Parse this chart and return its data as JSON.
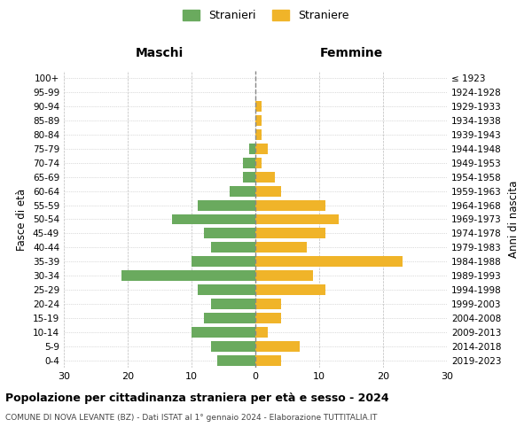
{
  "age_groups_bottom_to_top": [
    "0-4",
    "5-9",
    "10-14",
    "15-19",
    "20-24",
    "25-29",
    "30-34",
    "35-39",
    "40-44",
    "45-49",
    "50-54",
    "55-59",
    "60-64",
    "65-69",
    "70-74",
    "75-79",
    "80-84",
    "85-89",
    "90-94",
    "95-99",
    "100+"
  ],
  "birth_years_bottom_to_top": [
    "2019-2023",
    "2014-2018",
    "2009-2013",
    "2004-2008",
    "1999-2003",
    "1994-1998",
    "1989-1993",
    "1984-1988",
    "1979-1983",
    "1974-1978",
    "1969-1973",
    "1964-1968",
    "1959-1963",
    "1954-1958",
    "1949-1953",
    "1944-1948",
    "1939-1943",
    "1934-1938",
    "1929-1933",
    "1924-1928",
    "≤ 1923"
  ],
  "males_bottom_to_top": [
    6,
    7,
    10,
    8,
    7,
    9,
    21,
    10,
    7,
    8,
    13,
    9,
    4,
    2,
    2,
    1,
    0,
    0,
    0,
    0,
    0
  ],
  "females_bottom_to_top": [
    4,
    7,
    2,
    4,
    4,
    11,
    9,
    23,
    8,
    11,
    13,
    11,
    4,
    3,
    1,
    2,
    1,
    1,
    1,
    0,
    0
  ],
  "male_color": "#6aaa5e",
  "female_color": "#f0b429",
  "title": "Popolazione per cittadinanza straniera per età e sesso - 2024",
  "subtitle": "COMUNE DI NOVA LEVANTE (BZ) - Dati ISTAT al 1° gennaio 2024 - Elaborazione TUTTITALIA.IT",
  "xlabel_left": "Maschi",
  "xlabel_right": "Femmine",
  "ylabel_left": "Fasce di età",
  "ylabel_right": "Anni di nascita",
  "legend_males": "Stranieri",
  "legend_females": "Straniere",
  "xlim": 30,
  "background_color": "#ffffff",
  "grid_color": "#bbbbbb"
}
